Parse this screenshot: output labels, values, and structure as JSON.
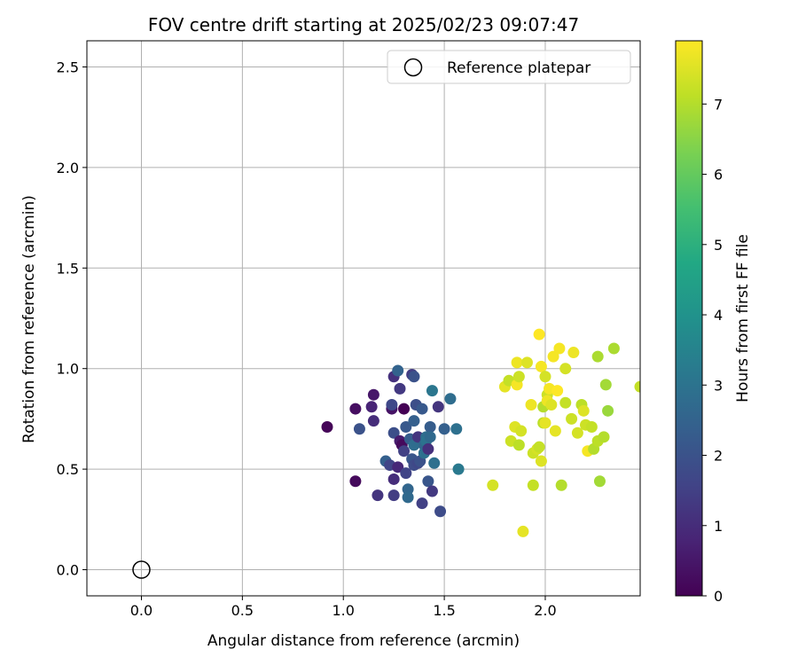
{
  "chart_data": {
    "type": "scatter",
    "title": "FOV centre drift starting at 2025/02/23 09:07:47",
    "xlabel": "Angular distance from reference (arcmin)",
    "ylabel": "Rotation from reference (arcmin)",
    "xlim": [
      -0.27,
      2.47
    ],
    "ylim": [
      -0.13,
      2.63
    ],
    "xticks": [
      "0.0",
      "0.5",
      "1.0",
      "1.5",
      "2.0"
    ],
    "yticks": [
      "0.0",
      "0.5",
      "1.0",
      "1.5",
      "2.0",
      "2.5"
    ],
    "grid": true,
    "legend": {
      "position": "top-right",
      "label": "Reference platepar"
    },
    "reference_point": {
      "x": 0.0,
      "y": 0.0
    },
    "colorbar": {
      "label": "Hours from first FF file",
      "min": 0,
      "max": 7.9,
      "colormap": "viridis",
      "ticks": [
        "0",
        "1",
        "2",
        "3",
        "4",
        "5",
        "6",
        "7"
      ]
    },
    "points": [
      {
        "x": 0.92,
        "y": 0.71,
        "h": 0.1
      },
      {
        "x": 1.06,
        "y": 0.44,
        "h": 0.2
      },
      {
        "x": 1.06,
        "y": 0.8,
        "h": 0.3
      },
      {
        "x": 1.08,
        "y": 0.7,
        "h": 2.0
      },
      {
        "x": 1.14,
        "y": 0.81,
        "h": 0.8
      },
      {
        "x": 1.15,
        "y": 0.74,
        "h": 1.0
      },
      {
        "x": 1.15,
        "y": 0.87,
        "h": 0.5
      },
      {
        "x": 1.17,
        "y": 0.37,
        "h": 1.2
      },
      {
        "x": 1.21,
        "y": 0.54,
        "h": 2.4
      },
      {
        "x": 1.23,
        "y": 0.52,
        "h": 1.6
      },
      {
        "x": 1.24,
        "y": 0.8,
        "h": 0.4
      },
      {
        "x": 1.24,
        "y": 0.82,
        "h": 1.7
      },
      {
        "x": 1.25,
        "y": 0.96,
        "h": 1.1
      },
      {
        "x": 1.25,
        "y": 0.68,
        "h": 1.9
      },
      {
        "x": 1.25,
        "y": 0.45,
        "h": 1.0
      },
      {
        "x": 1.25,
        "y": 0.37,
        "h": 1.4
      },
      {
        "x": 1.27,
        "y": 0.99,
        "h": 2.5
      },
      {
        "x": 1.27,
        "y": 0.51,
        "h": 0.9
      },
      {
        "x": 1.28,
        "y": 0.64,
        "h": 0.6
      },
      {
        "x": 1.28,
        "y": 0.9,
        "h": 1.3
      },
      {
        "x": 1.29,
        "y": 0.62,
        "h": 0.2
      },
      {
        "x": 1.3,
        "y": 0.8,
        "h": 0.0
      },
      {
        "x": 1.3,
        "y": 0.59,
        "h": 1.5
      },
      {
        "x": 1.31,
        "y": 0.48,
        "h": 1.6
      },
      {
        "x": 1.31,
        "y": 0.71,
        "h": 2.2
      },
      {
        "x": 1.32,
        "y": 0.4,
        "h": 2.6
      },
      {
        "x": 1.32,
        "y": 0.36,
        "h": 2.7
      },
      {
        "x": 1.33,
        "y": 0.65,
        "h": 2.3
      },
      {
        "x": 1.34,
        "y": 0.97,
        "h": 1.4
      },
      {
        "x": 1.34,
        "y": 0.55,
        "h": 2.1
      },
      {
        "x": 1.35,
        "y": 0.96,
        "h": 2.0
      },
      {
        "x": 1.35,
        "y": 0.74,
        "h": 2.4
      },
      {
        "x": 1.35,
        "y": 0.62,
        "h": 2.8
      },
      {
        "x": 1.35,
        "y": 0.52,
        "h": 1.8
      },
      {
        "x": 1.36,
        "y": 0.82,
        "h": 1.9
      },
      {
        "x": 1.37,
        "y": 0.53,
        "h": 1.7
      },
      {
        "x": 1.37,
        "y": 0.66,
        "h": 1.2
      },
      {
        "x": 1.38,
        "y": 0.54,
        "h": 2.0
      },
      {
        "x": 1.39,
        "y": 0.33,
        "h": 1.5
      },
      {
        "x": 1.39,
        "y": 0.8,
        "h": 2.2
      },
      {
        "x": 1.4,
        "y": 0.62,
        "h": 2.6
      },
      {
        "x": 1.4,
        "y": 0.58,
        "h": 2.9
      },
      {
        "x": 1.41,
        "y": 0.66,
        "h": 2.8
      },
      {
        "x": 1.41,
        "y": 0.64,
        "h": 3.0
      },
      {
        "x": 1.42,
        "y": 0.44,
        "h": 2.1
      },
      {
        "x": 1.42,
        "y": 0.6,
        "h": 1.1
      },
      {
        "x": 1.43,
        "y": 0.71,
        "h": 2.3
      },
      {
        "x": 1.43,
        "y": 0.66,
        "h": 2.7
      },
      {
        "x": 1.44,
        "y": 0.39,
        "h": 1.3
      },
      {
        "x": 1.44,
        "y": 0.89,
        "h": 3.1
      },
      {
        "x": 1.45,
        "y": 0.53,
        "h": 2.9
      },
      {
        "x": 1.47,
        "y": 0.81,
        "h": 1.2
      },
      {
        "x": 1.48,
        "y": 0.29,
        "h": 1.8
      },
      {
        "x": 1.5,
        "y": 0.7,
        "h": 2.4
      },
      {
        "x": 1.53,
        "y": 0.85,
        "h": 2.8
      },
      {
        "x": 1.56,
        "y": 0.7,
        "h": 2.9
      },
      {
        "x": 1.57,
        "y": 0.5,
        "h": 3.2
      },
      {
        "x": 1.74,
        "y": 0.42,
        "h": 7.4
      },
      {
        "x": 1.8,
        "y": 0.91,
        "h": 7.6
      },
      {
        "x": 1.82,
        "y": 0.94,
        "h": 7.2
      },
      {
        "x": 1.83,
        "y": 0.64,
        "h": 7.3
      },
      {
        "x": 1.85,
        "y": 0.71,
        "h": 7.5
      },
      {
        "x": 1.86,
        "y": 0.92,
        "h": 7.8
      },
      {
        "x": 1.86,
        "y": 1.03,
        "h": 7.7
      },
      {
        "x": 1.87,
        "y": 0.62,
        "h": 7.1
      },
      {
        "x": 1.87,
        "y": 0.96,
        "h": 7.3
      },
      {
        "x": 1.88,
        "y": 0.69,
        "h": 7.4
      },
      {
        "x": 1.89,
        "y": 0.19,
        "h": 7.6
      },
      {
        "x": 1.91,
        "y": 1.03,
        "h": 7.5
      },
      {
        "x": 1.93,
        "y": 0.82,
        "h": 7.7
      },
      {
        "x": 1.94,
        "y": 0.42,
        "h": 7.2
      },
      {
        "x": 1.94,
        "y": 0.58,
        "h": 7.3
      },
      {
        "x": 1.96,
        "y": 0.6,
        "h": 7.4
      },
      {
        "x": 1.97,
        "y": 0.61,
        "h": 7.2
      },
      {
        "x": 1.97,
        "y": 1.17,
        "h": 7.9
      },
      {
        "x": 1.98,
        "y": 0.54,
        "h": 7.5
      },
      {
        "x": 1.98,
        "y": 1.01,
        "h": 7.8
      },
      {
        "x": 1.99,
        "y": 0.81,
        "h": 7.0
      },
      {
        "x": 1.99,
        "y": 0.73,
        "h": 7.1
      },
      {
        "x": 2.0,
        "y": 0.96,
        "h": 7.4
      },
      {
        "x": 2.0,
        "y": 0.73,
        "h": 7.6
      },
      {
        "x": 2.01,
        "y": 0.87,
        "h": 7.3
      },
      {
        "x": 2.01,
        "y": 0.84,
        "h": 7.7
      },
      {
        "x": 2.02,
        "y": 0.9,
        "h": 7.8
      },
      {
        "x": 2.03,
        "y": 0.82,
        "h": 7.5
      },
      {
        "x": 2.04,
        "y": 1.06,
        "h": 7.8
      },
      {
        "x": 2.05,
        "y": 0.69,
        "h": 7.6
      },
      {
        "x": 2.06,
        "y": 0.89,
        "h": 7.9
      },
      {
        "x": 2.07,
        "y": 1.1,
        "h": 7.8
      },
      {
        "x": 2.08,
        "y": 0.42,
        "h": 7.0
      },
      {
        "x": 2.1,
        "y": 1.0,
        "h": 7.4
      },
      {
        "x": 2.1,
        "y": 0.83,
        "h": 7.2
      },
      {
        "x": 2.13,
        "y": 0.75,
        "h": 7.3
      },
      {
        "x": 2.14,
        "y": 1.08,
        "h": 7.7
      },
      {
        "x": 2.16,
        "y": 0.68,
        "h": 7.4
      },
      {
        "x": 2.18,
        "y": 0.82,
        "h": 7.1
      },
      {
        "x": 2.19,
        "y": 0.79,
        "h": 7.5
      },
      {
        "x": 2.2,
        "y": 0.72,
        "h": 7.3
      },
      {
        "x": 2.21,
        "y": 0.59,
        "h": 7.8
      },
      {
        "x": 2.23,
        "y": 0.71,
        "h": 7.2
      },
      {
        "x": 2.24,
        "y": 0.6,
        "h": 7.0
      },
      {
        "x": 2.26,
        "y": 1.06,
        "h": 6.9
      },
      {
        "x": 2.26,
        "y": 0.64,
        "h": 7.1
      },
      {
        "x": 2.27,
        "y": 0.44,
        "h": 6.8
      },
      {
        "x": 2.29,
        "y": 0.66,
        "h": 7.0
      },
      {
        "x": 2.3,
        "y": 0.92,
        "h": 6.8
      },
      {
        "x": 2.31,
        "y": 0.79,
        "h": 6.7
      },
      {
        "x": 2.34,
        "y": 1.1,
        "h": 6.9
      },
      {
        "x": 2.47,
        "y": 0.91,
        "h": 7.2
      }
    ]
  }
}
